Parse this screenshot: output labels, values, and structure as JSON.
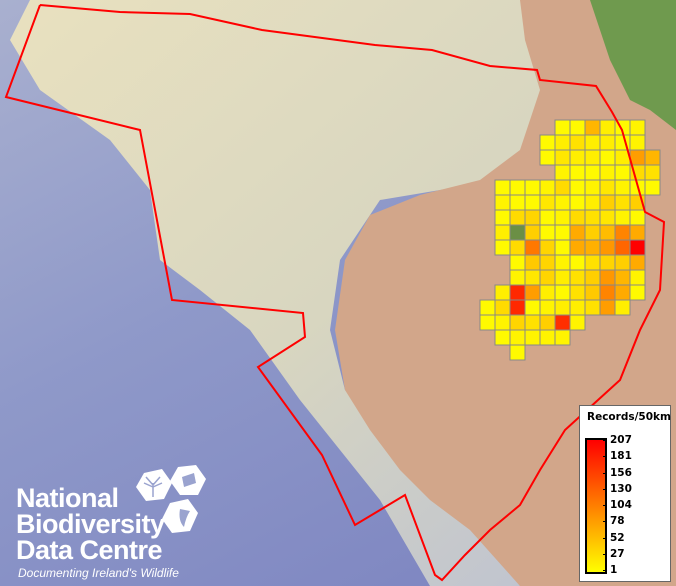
{
  "legend": {
    "title": "Records/50km",
    "labels": [
      "207",
      "181",
      "156",
      "130",
      "104",
      "78",
      "52",
      "27",
      "1"
    ],
    "color_low": "#ffff00",
    "color_high": "#ff0000",
    "min": 1,
    "max": 207
  },
  "logo": {
    "line1": "National",
    "line2": "Biodiversity",
    "line3": "Data Centre",
    "tagline": "Documenting Ireland's Wildlife"
  },
  "colors": {
    "boundary": "#ff0000",
    "grid_line": "#888888",
    "no_data_cell": "#6b8f45",
    "deep_sea": "#8e9ac8",
    "shelf": "#e6dcb8",
    "land": "#d2a68a"
  },
  "grid_note_null_cell": "",
  "records_grid": [
    [
      0,
      0,
      0,
      0,
      0,
      5,
      5,
      60,
      15,
      5,
      10,
      0
    ],
    [
      0,
      0,
      0,
      0,
      5,
      15,
      25,
      15,
      15,
      5,
      10,
      0
    ],
    [
      0,
      0,
      0,
      0,
      5,
      20,
      15,
      15,
      5,
      15,
      80,
      60
    ],
    [
      0,
      0,
      0,
      0,
      0,
      10,
      5,
      5,
      10,
      5,
      30,
      25
    ],
    [
      0,
      5,
      5,
      5,
      10,
      30,
      5,
      10,
      20,
      10,
      5,
      5
    ],
    [
      0,
      10,
      5,
      5,
      20,
      10,
      5,
      15,
      40,
      25,
      40,
      0
    ],
    [
      0,
      5,
      30,
      35,
      5,
      10,
      30,
      25,
      20,
      10,
      5,
      0
    ],
    [
      0,
      15,
      null,
      40,
      5,
      5,
      70,
      40,
      55,
      100,
      70,
      0
    ],
    [
      0,
      5,
      30,
      110,
      35,
      5,
      70,
      65,
      85,
      125,
      207,
      0
    ],
    [
      0,
      0,
      5,
      45,
      35,
      10,
      5,
      25,
      35,
      40,
      70,
      0
    ],
    [
      0,
      0,
      10,
      20,
      35,
      15,
      25,
      40,
      85,
      60,
      10,
      0
    ],
    [
      0,
      15,
      175,
      80,
      15,
      5,
      25,
      45,
      100,
      70,
      5,
      0
    ],
    [
      5,
      30,
      175,
      5,
      10,
      15,
      15,
      25,
      80,
      15,
      0,
      0
    ],
    [
      5,
      10,
      35,
      25,
      40,
      170,
      10,
      0,
      0,
      0,
      0,
      0
    ],
    [
      0,
      5,
      10,
      10,
      10,
      10,
      0,
      0,
      0,
      0,
      0,
      0
    ],
    [
      0,
      0,
      5,
      0,
      0,
      0,
      0,
      0,
      0,
      0,
      0,
      0
    ]
  ]
}
